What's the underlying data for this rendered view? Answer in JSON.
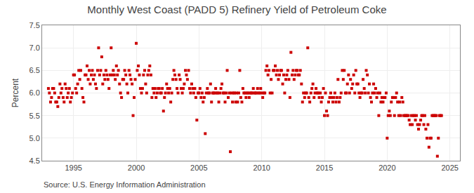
{
  "chart_data": {
    "type": "scatter",
    "title": "Monthly West Coast (PADD 5) Refinery Yield of Petroleum Coke",
    "ylabel": "Percent",
    "annotations": [
      "Source: U.S. Energy Information Administration"
    ],
    "color": "#CC0000",
    "marker": "square",
    "grid": true,
    "xlim": [
      1992.5,
      2025.8
    ],
    "ylim": [
      4.5,
      7.5
    ],
    "xticks": [
      1995,
      2000,
      2005,
      2010,
      2015,
      2020,
      2025
    ],
    "yticks": [
      4.5,
      {
        "value": 5.0,
        "label": "5.0"
      },
      5.5,
      {
        "value": 6.0,
        "label": "6.0"
      },
      6.5,
      {
        "value": 7.0,
        "label": "7.0"
      },
      7.5
    ],
    "x": [
      1993.0,
      1993.08,
      1993.17,
      1993.25,
      1993.33,
      1993.42,
      1993.5,
      1993.58,
      1993.67,
      1993.75,
      1993.83,
      1993.92,
      1994.0,
      1994.08,
      1994.17,
      1994.25,
      1994.33,
      1994.42,
      1994.5,
      1994.58,
      1994.67,
      1994.75,
      1994.83,
      1994.92,
      1995.0,
      1995.08,
      1995.17,
      1995.25,
      1995.33,
      1995.42,
      1995.5,
      1995.58,
      1995.67,
      1995.75,
      1995.83,
      1995.92,
      1996.0,
      1996.08,
      1996.17,
      1996.25,
      1996.33,
      1996.42,
      1996.5,
      1996.58,
      1996.67,
      1996.75,
      1996.83,
      1996.92,
      1997.0,
      1997.08,
      1997.17,
      1997.25,
      1997.33,
      1997.42,
      1997.5,
      1997.58,
      1997.67,
      1997.75,
      1997.83,
      1997.92,
      1998.0,
      1998.08,
      1998.17,
      1998.25,
      1998.33,
      1998.42,
      1998.5,
      1998.58,
      1998.67,
      1998.75,
      1998.83,
      1998.92,
      1999.0,
      1999.08,
      1999.17,
      1999.25,
      1999.33,
      1999.42,
      1999.5,
      1999.58,
      1999.67,
      1999.75,
      1999.83,
      1999.92,
      2000.0,
      2000.08,
      2000.17,
      2000.25,
      2000.33,
      2000.42,
      2000.5,
      2000.58,
      2000.67,
      2000.75,
      2000.83,
      2000.92,
      2001.0,
      2001.08,
      2001.17,
      2001.25,
      2001.33,
      2001.42,
      2001.5,
      2001.58,
      2001.67,
      2001.75,
      2001.83,
      2001.92,
      2002.0,
      2002.08,
      2002.17,
      2002.25,
      2002.33,
      2002.42,
      2002.5,
      2002.58,
      2002.67,
      2002.75,
      2002.83,
      2002.92,
      2003.0,
      2003.08,
      2003.17,
      2003.25,
      2003.33,
      2003.42,
      2003.5,
      2003.58,
      2003.67,
      2003.75,
      2003.83,
      2003.92,
      2004.0,
      2004.08,
      2004.17,
      2004.25,
      2004.33,
      2004.42,
      2004.5,
      2004.58,
      2004.67,
      2004.75,
      2004.83,
      2004.92,
      2005.0,
      2005.08,
      2005.17,
      2005.25,
      2005.33,
      2005.42,
      2005.5,
      2005.58,
      2005.67,
      2005.75,
      2005.83,
      2005.92,
      2006.0,
      2006.08,
      2006.17,
      2006.25,
      2006.33,
      2006.42,
      2006.5,
      2006.58,
      2006.67,
      2006.75,
      2006.83,
      2006.92,
      2007.0,
      2007.08,
      2007.17,
      2007.25,
      2007.33,
      2007.42,
      2007.5,
      2007.58,
      2007.67,
      2007.75,
      2007.83,
      2007.92,
      2008.0,
      2008.08,
      2008.17,
      2008.25,
      2008.33,
      2008.42,
      2008.5,
      2008.58,
      2008.67,
      2008.75,
      2008.83,
      2008.92,
      2009.0,
      2009.08,
      2009.17,
      2009.25,
      2009.33,
      2009.42,
      2009.5,
      2009.58,
      2009.67,
      2009.75,
      2009.83,
      2009.92,
      2010.0,
      2010.08,
      2010.17,
      2010.25,
      2010.33,
      2010.42,
      2010.5,
      2010.58,
      2010.67,
      2010.75,
      2010.83,
      2010.92,
      2011.0,
      2011.08,
      2011.17,
      2011.25,
      2011.33,
      2011.42,
      2011.5,
      2011.58,
      2011.67,
      2011.75,
      2011.83,
      2011.92,
      2012.0,
      2012.08,
      2012.17,
      2012.25,
      2012.33,
      2012.42,
      2012.5,
      2012.58,
      2012.67,
      2012.75,
      2012.83,
      2012.92,
      2013.0,
      2013.08,
      2013.17,
      2013.25,
      2013.33,
      2013.42,
      2013.5,
      2013.58,
      2013.67,
      2013.75,
      2013.83,
      2013.92,
      2014.0,
      2014.08,
      2014.17,
      2014.25,
      2014.33,
      2014.42,
      2014.5,
      2014.58,
      2014.67,
      2014.75,
      2014.83,
      2014.92,
      2015.0,
      2015.08,
      2015.17,
      2015.25,
      2015.33,
      2015.42,
      2015.5,
      2015.58,
      2015.67,
      2015.75,
      2015.83,
      2015.92,
      2016.0,
      2016.08,
      2016.17,
      2016.25,
      2016.33,
      2016.42,
      2016.5,
      2016.58,
      2016.67,
      2016.75,
      2016.83,
      2016.92,
      2017.0,
      2017.08,
      2017.17,
      2017.25,
      2017.33,
      2017.42,
      2017.5,
      2017.58,
      2017.67,
      2017.75,
      2017.83,
      2017.92,
      2018.0,
      2018.08,
      2018.17,
      2018.25,
      2018.33,
      2018.42,
      2018.5,
      2018.58,
      2018.67,
      2018.75,
      2018.83,
      2018.92,
      2019.0,
      2019.08,
      2019.17,
      2019.25,
      2019.33,
      2019.42,
      2019.5,
      2019.58,
      2019.67,
      2019.75,
      2019.83,
      2019.92,
      2020.0,
      2020.08,
      2020.17,
      2020.25,
      2020.33,
      2020.42,
      2020.5,
      2020.58,
      2020.67,
      2020.75,
      2020.83,
      2020.92,
      2021.0,
      2021.08,
      2021.17,
      2021.25,
      2021.33,
      2021.42,
      2021.5,
      2021.58,
      2021.67,
      2021.75,
      2021.83,
      2021.92,
      2022.0,
      2022.08,
      2022.17,
      2022.25,
      2022.33,
      2022.42,
      2022.5,
      2022.58,
      2022.67,
      2022.75,
      2022.83,
      2022.92,
      2023.0,
      2023.08,
      2023.17,
      2023.25,
      2023.33,
      2023.42,
      2023.5,
      2023.58,
      2023.67,
      2023.75,
      2023.83,
      2023.92,
      2024.0,
      2024.08,
      2024.17,
      2024.25,
      2024.33
    ],
    "values": [
      6.1,
      6.0,
      5.8,
      5.9,
      6.1,
      6.1,
      6.0,
      5.8,
      5.8,
      5.7,
      5.9,
      6.2,
      6.0,
      6.1,
      5.9,
      5.8,
      6.2,
      6.1,
      5.9,
      6.0,
      6.1,
      5.8,
      5.9,
      6.0,
      6.4,
      6.4,
      6.1,
      6.0,
      6.2,
      6.5,
      6.3,
      6.5,
      6.1,
      5.9,
      5.8,
      6.4,
      6.4,
      6.6,
      6.3,
      6.5,
      6.2,
      6.4,
      6.5,
      6.3,
      6.4,
      6.2,
      6.1,
      6.5,
      7.0,
      6.4,
      6.5,
      6.8,
      6.2,
      6.4,
      6.3,
      6.5,
      6.4,
      6.3,
      6.1,
      6.4,
      7.0,
      6.4,
      6.5,
      6.4,
      6.3,
      6.6,
      6.4,
      6.5,
      6.2,
      6.0,
      5.9,
      6.3,
      6.3,
      6.5,
      6.4,
      6.2,
      6.0,
      6.5,
      6.4,
      6.3,
      6.2,
      5.5,
      5.9,
      6.3,
      7.1,
      6.5,
      6.6,
      6.4,
      6.1,
      6.0,
      6.1,
      6.4,
      6.5,
      6.2,
      6.0,
      6.4,
      6.5,
      6.6,
      6.4,
      5.9,
      6.1,
      6.0,
      6.1,
      5.9,
      6.0,
      6.1,
      6.1,
      6.0,
      6.0,
      6.1,
      5.6,
      5.9,
      6.0,
      6.2,
      6.1,
      6.0,
      6.1,
      5.8,
      6.0,
      6.3,
      6.5,
      6.4,
      6.3,
      6.1,
      6.0,
      6.4,
      6.3,
      6.1,
      6.0,
      6.1,
      6.2,
      6.5,
      6.4,
      6.3,
      6.5,
      6.1,
      6.0,
      6.2,
      6.1,
      6.0,
      6.1,
      5.9,
      5.4,
      6.0,
      6.0,
      6.1,
      5.9,
      6.0,
      5.8,
      5.9,
      5.1,
      6.0,
      6.1,
      6.0,
      6.0,
      6.2,
      5.8,
      6.0,
      6.0,
      6.0,
      6.1,
      6.0,
      6.0,
      5.8,
      6.0,
      6.1,
      6.2,
      6.0,
      6.0,
      5.8,
      6.0,
      6.5,
      5.9,
      6.0,
      4.7,
      6.0,
      5.8,
      6.0,
      6.0,
      5.8,
      6.0,
      5.8,
      6.0,
      6.5,
      5.9,
      5.8,
      6.1,
      6.0,
      6.0,
      5.9,
      6.0,
      6.0,
      5.9,
      6.0,
      6.0,
      6.0,
      6.1,
      6.0,
      6.0,
      6.0,
      6.1,
      6.0,
      6.0,
      6.1,
      6.0,
      5.9,
      6.0,
      6.0,
      6.5,
      6.6,
      6.4,
      6.5,
      6.0,
      6.3,
      6.0,
      6.5,
      6.5,
      6.6,
      6.4,
      6.5,
      6.3,
      6.4,
      6.5,
      6.5,
      6.2,
      6.4,
      6.0,
      6.3,
      6.4,
      6.5,
      6.3,
      5.9,
      6.9,
      6.4,
      6.5,
      6.3,
      6.4,
      6.5,
      6.5,
      6.4,
      6.4,
      6.5,
      6.2,
      5.8,
      6.0,
      5.9,
      6.0,
      6.0,
      7.0,
      5.9,
      5.8,
      6.0,
      6.1,
      6.2,
      5.9,
      6.0,
      6.1,
      6.0,
      6.0,
      5.9,
      6.0,
      5.8,
      5.9,
      6.1,
      5.5,
      6.0,
      5.6,
      5.5,
      5.8,
      5.9,
      6.0,
      5.9,
      5.8,
      5.9,
      6.0,
      5.8,
      5.9,
      6.3,
      5.8,
      5.9,
      6.0,
      6.5,
      6.3,
      6.5,
      6.0,
      6.0,
      6.2,
      6.4,
      6.0,
      6.3,
      6.1,
      6.2,
      6.4,
      6.0,
      6.5,
      6.2,
      6.2,
      6.0,
      5.9,
      6.0,
      6.0,
      6.3,
      6.1,
      6.0,
      6.5,
      6.4,
      6.0,
      6.2,
      5.9,
      5.8,
      6.0,
      6.2,
      6.0,
      6.1,
      5.9,
      6.0,
      5.5,
      6.0,
      5.8,
      5.9,
      5.8,
      5.9,
      5.9,
      6.0,
      5.0,
      5.5,
      5.6,
      5.5,
      5.8,
      5.9,
      5.9,
      5.5,
      5.9,
      6.0,
      5.8,
      5.5,
      5.8,
      5.5,
      5.9,
      5.8,
      5.5,
      5.5,
      5.5,
      5.5,
      5.5,
      5.4,
      5.3,
      5.5,
      5.3,
      5.5,
      5.5,
      5.4,
      5.5,
      5.3,
      5.2,
      5.3,
      5.4,
      5.5,
      5.5,
      5.3,
      5.5,
      5.2,
      5.0,
      5.3,
      4.8,
      5.0,
      5.0,
      5.5,
      5.5,
      5.5,
      5.5,
      5.5,
      4.6,
      5.0,
      5.5,
      5.5,
      5.5
    ]
  }
}
